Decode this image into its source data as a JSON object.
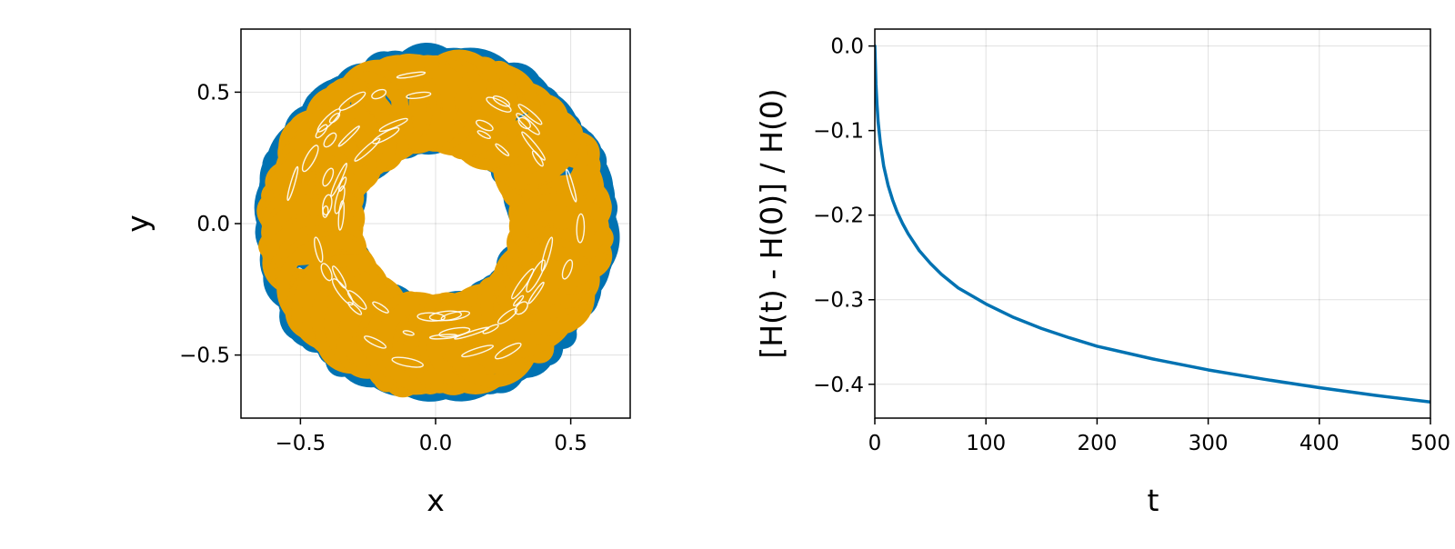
{
  "chart_data": [
    {
      "type": "line",
      "xlabel": "x",
      "ylabel": "y",
      "xlim": [
        -0.72,
        0.72
      ],
      "ylim": [
        -0.74,
        0.74
      ],
      "xticks": [
        -0.5,
        0.0,
        0.5
      ],
      "xtick_labels": [
        "−0.5",
        "0.0",
        "0.5"
      ],
      "yticks": [
        -0.5,
        0.0,
        0.5
      ],
      "ytick_labels": [
        "−0.5",
        "0.0",
        "0.5"
      ],
      "grid": true,
      "series": [
        {
          "color": "#0072b2",
          "ring_inner_radius": 0.29,
          "ring_outer_radius": 0.66,
          "linewidth": 14
        },
        {
          "color": "#e69f00",
          "ring_inner_radius": 0.29,
          "ring_outer_radius": 0.64,
          "linewidth": 14
        }
      ]
    },
    {
      "type": "line",
      "xlabel": "t",
      "ylabel": "[H(t) - H(0)] / H(0)",
      "xlim": [
        0,
        500
      ],
      "ylim": [
        -0.44,
        0.02
      ],
      "xticks": [
        0,
        100,
        200,
        300,
        400,
        500
      ],
      "xtick_labels": [
        "0",
        "100",
        "200",
        "300",
        "400",
        "500"
      ],
      "yticks": [
        0.0,
        -0.1,
        -0.2,
        -0.3,
        -0.4
      ],
      "ytick_labels": [
        "0.0",
        "−0.1",
        "−0.2",
        "−0.3",
        "−0.4"
      ],
      "grid": true,
      "series": [
        {
          "color": "#0072b2",
          "x": [
            0,
            1,
            2,
            3,
            5,
            8,
            12,
            16,
            20,
            25,
            30,
            40,
            50,
            60,
            75,
            100,
            125,
            150,
            175,
            200,
            250,
            300,
            350,
            400,
            450,
            500
          ],
          "y": [
            0.0,
            -0.045,
            -0.07,
            -0.09,
            -0.115,
            -0.142,
            -0.165,
            -0.182,
            -0.196,
            -0.21,
            -0.222,
            -0.242,
            -0.257,
            -0.27,
            -0.286,
            -0.305,
            -0.321,
            -0.334,
            -0.345,
            -0.355,
            -0.37,
            -0.383,
            -0.394,
            -0.404,
            -0.413,
            -0.421
          ]
        }
      ]
    }
  ]
}
